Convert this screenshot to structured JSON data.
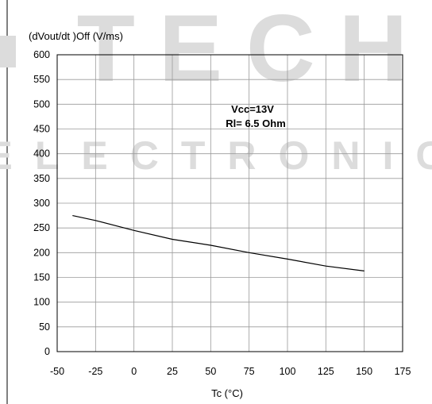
{
  "chart_data": {
    "type": "line",
    "ylabel": "(dVout/dt )Off (V/ms)",
    "xlabel": "Tc (°C)",
    "xlim": [
      -50,
      175
    ],
    "ylim": [
      0,
      600
    ],
    "x_ticks": [
      -50,
      -25,
      0,
      25,
      50,
      75,
      100,
      125,
      150,
      175
    ],
    "y_ticks": [
      0,
      50,
      100,
      150,
      200,
      250,
      300,
      350,
      400,
      450,
      500,
      550,
      600
    ],
    "grid": true,
    "annotations": [
      "Vcc=13V",
      "Rl= 6.5 Ohm"
    ],
    "series": [
      {
        "x": [
          -40,
          -25,
          0,
          25,
          50,
          75,
          100,
          125,
          150
        ],
        "y": [
          275,
          265,
          245,
          227,
          215,
          200,
          187,
          173,
          163
        ]
      }
    ]
  },
  "watermark": {
    "line1": "TECH",
    "line2": "ELECTRONIC"
  }
}
